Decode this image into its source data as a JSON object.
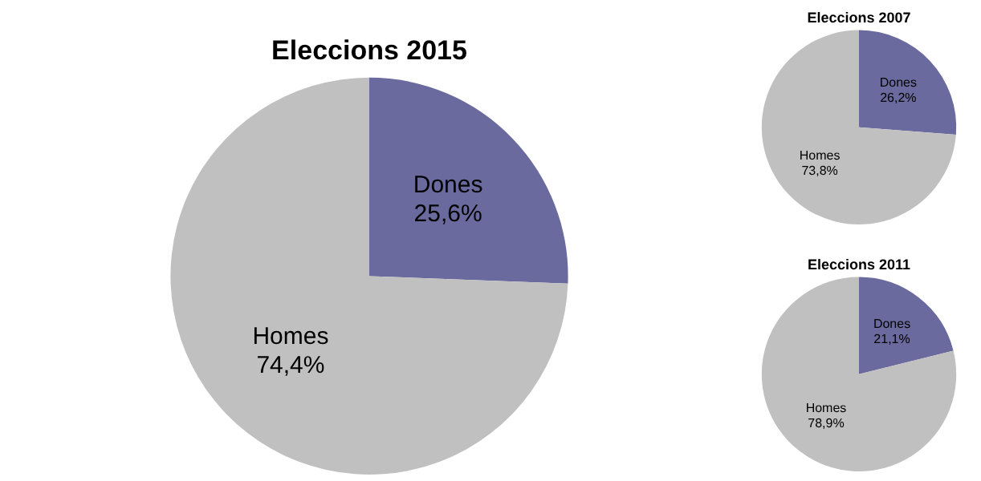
{
  "chart_data": [
    {
      "type": "pie",
      "title": "Eleccions 2015",
      "categories": [
        "Dones",
        "Homes"
      ],
      "values": [
        25.6,
        74.4
      ],
      "colors": [
        "#6a6a9e",
        "#c0c0c0"
      ],
      "value_labels": [
        "25,6%",
        "74,4%"
      ],
      "legend": false
    },
    {
      "type": "pie",
      "title": "Eleccions 2007",
      "categories": [
        "Dones",
        "Homes"
      ],
      "values": [
        26.2,
        73.8
      ],
      "colors": [
        "#6a6a9e",
        "#c0c0c0"
      ],
      "value_labels": [
        "26,2%",
        "73,8%"
      ],
      "legend": false
    },
    {
      "type": "pie",
      "title": "Eleccions 2011",
      "categories": [
        "Dones",
        "Homes"
      ],
      "values": [
        21.1,
        78.9
      ],
      "colors": [
        "#6a6a9e",
        "#c0c0c0"
      ],
      "value_labels": [
        "21,1%",
        "78,9%"
      ],
      "legend": false
    }
  ]
}
